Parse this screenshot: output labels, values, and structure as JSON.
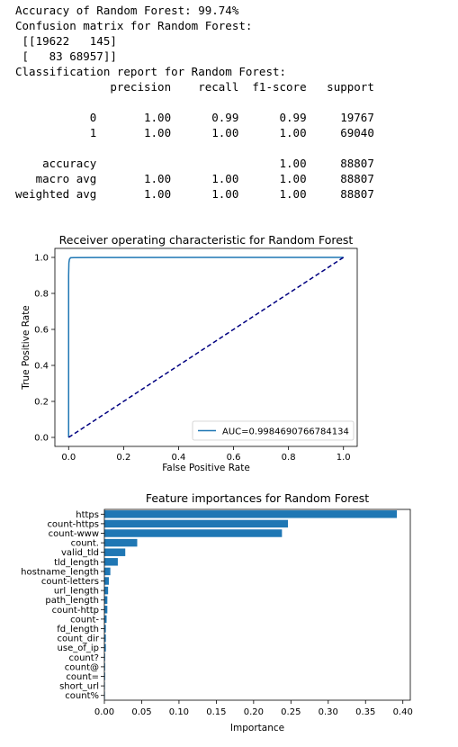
{
  "console": {
    "lines": [
      "Accuracy of Random Forest: 99.74%",
      "Confusion matrix for Random Forest:",
      " [[19622   145]",
      " [   83 68957]]",
      "Classification report for Random Forest:",
      "              precision    recall  f1-score   support",
      "",
      "           0       1.00      0.99      0.99     19767",
      "           1       1.00      1.00      1.00     69040",
      "",
      "    accuracy                           1.00     88807",
      "   macro avg       1.00      1.00      1.00     88807",
      "weighted avg       1.00      1.00      1.00     88807"
    ]
  },
  "chart_data": [
    {
      "type": "line",
      "title": "Receiver operating characteristic for Random Forest",
      "xlabel": "False Positive Rate",
      "ylabel": "True Positive Rate",
      "xlim": [
        -0.05,
        1.05
      ],
      "ylim": [
        -0.05,
        1.05
      ],
      "xticks": [
        "0.0",
        "0.2",
        "0.4",
        "0.6",
        "0.8",
        "1.0"
      ],
      "yticks": [
        "0.0",
        "0.2",
        "0.4",
        "0.6",
        "0.8",
        "1.0"
      ],
      "legend_position": "lower-right",
      "grid": false,
      "series": [
        {
          "name": "AUC=0.9984690766784134",
          "color": "#1f77b4",
          "style": "solid",
          "x": [
            0.0,
            0.0,
            0.001,
            0.003,
            0.007,
            0.02,
            0.1,
            0.5,
            1.0
          ],
          "y": [
            0.0,
            0.9,
            0.97,
            0.99,
            0.998,
            0.999,
            0.9995,
            1.0,
            1.0
          ]
        },
        {
          "color": "#000080",
          "style": "dashed",
          "x": [
            0,
            1
          ],
          "y": [
            0,
            1
          ]
        }
      ]
    },
    {
      "type": "bar",
      "orientation": "horizontal",
      "title": "Feature importances for Random Forest",
      "xlabel": "Importance",
      "xlim": [
        0,
        0.41
      ],
      "xticks": [
        "0.00",
        "0.05",
        "0.10",
        "0.15",
        "0.20",
        "0.25",
        "0.30",
        "0.35",
        "0.40"
      ],
      "color": "#1f77b4",
      "categories": [
        "https",
        "count-https",
        "count-www",
        "count.",
        "valid_tld",
        "tld_length",
        "hostname_length",
        "count-letters",
        "url_length",
        "path_length",
        "count-http",
        "count-",
        "fd_length",
        "count_dir",
        "use_of_ip",
        "count?",
        "count@",
        "count=",
        "short_url",
        "count%"
      ],
      "values": [
        0.392,
        0.246,
        0.238,
        0.044,
        0.028,
        0.018,
        0.008,
        0.006,
        0.005,
        0.004,
        0.004,
        0.003,
        0.002,
        0.002,
        0.002,
        0.001,
        0.001,
        0.001,
        0.0005,
        0.0003
      ]
    }
  ]
}
